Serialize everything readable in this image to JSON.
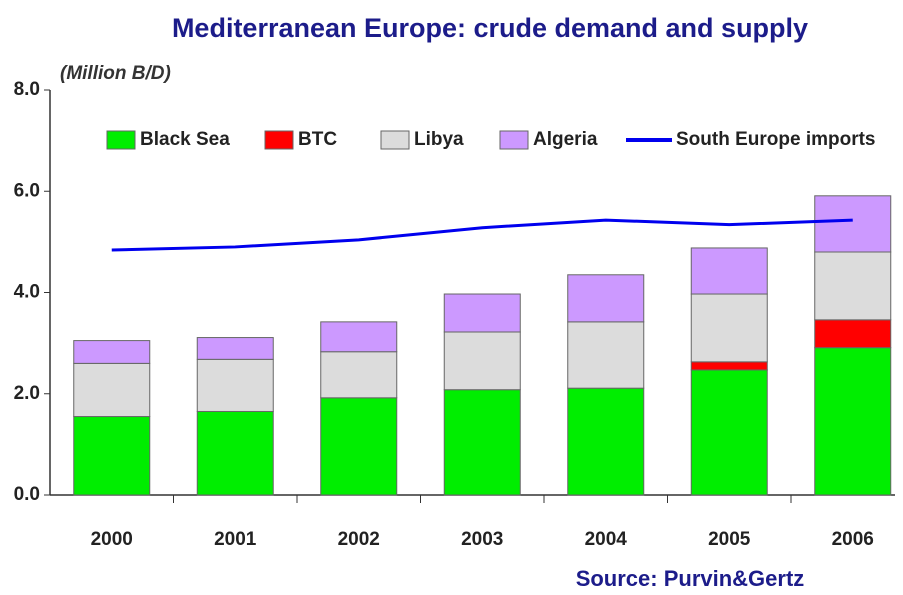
{
  "chart_data": {
    "type": "stacked_bar_line",
    "title": "Mediterranean Europe: crude demand and supply",
    "y_axis_label": "(Million B/D)",
    "source": "Source: Purvin&Gertz",
    "categories": [
      "2000",
      "2001",
      "2002",
      "2003",
      "2004",
      "2005",
      "2006"
    ],
    "series": [
      {
        "name": "Black Sea",
        "color": "#00ee00",
        "values": [
          1.55,
          1.65,
          1.92,
          2.08,
          2.11,
          2.47,
          2.91
        ]
      },
      {
        "name": "BTC",
        "color": "#ff0000",
        "values": [
          0,
          0,
          0,
          0,
          0,
          0.16,
          0.55
        ]
      },
      {
        "name": "Libya",
        "color": "#dcdcdc",
        "values": [
          1.05,
          1.03,
          0.91,
          1.14,
          1.31,
          1.34,
          1.34
        ]
      },
      {
        "name": "Algeria",
        "color": "#cc99ff",
        "values": [
          0.45,
          0.43,
          0.59,
          0.75,
          0.93,
          0.91,
          1.11
        ]
      },
      {
        "name": "South Europe imports",
        "color": "#0000ee",
        "type": "line",
        "values": [
          4.84,
          4.9,
          5.04,
          5.28,
          5.43,
          5.34,
          5.43
        ]
      }
    ],
    "ylim": [
      0,
      8
    ],
    "yticks": [
      {
        "value": 0,
        "label": "0.0"
      },
      {
        "value": 2,
        "label": "2.0"
      },
      {
        "value": 4,
        "label": "4.0"
      },
      {
        "value": 6,
        "label": "6.0"
      },
      {
        "value": 8,
        "label": "8.0"
      }
    ],
    "grid": false
  }
}
